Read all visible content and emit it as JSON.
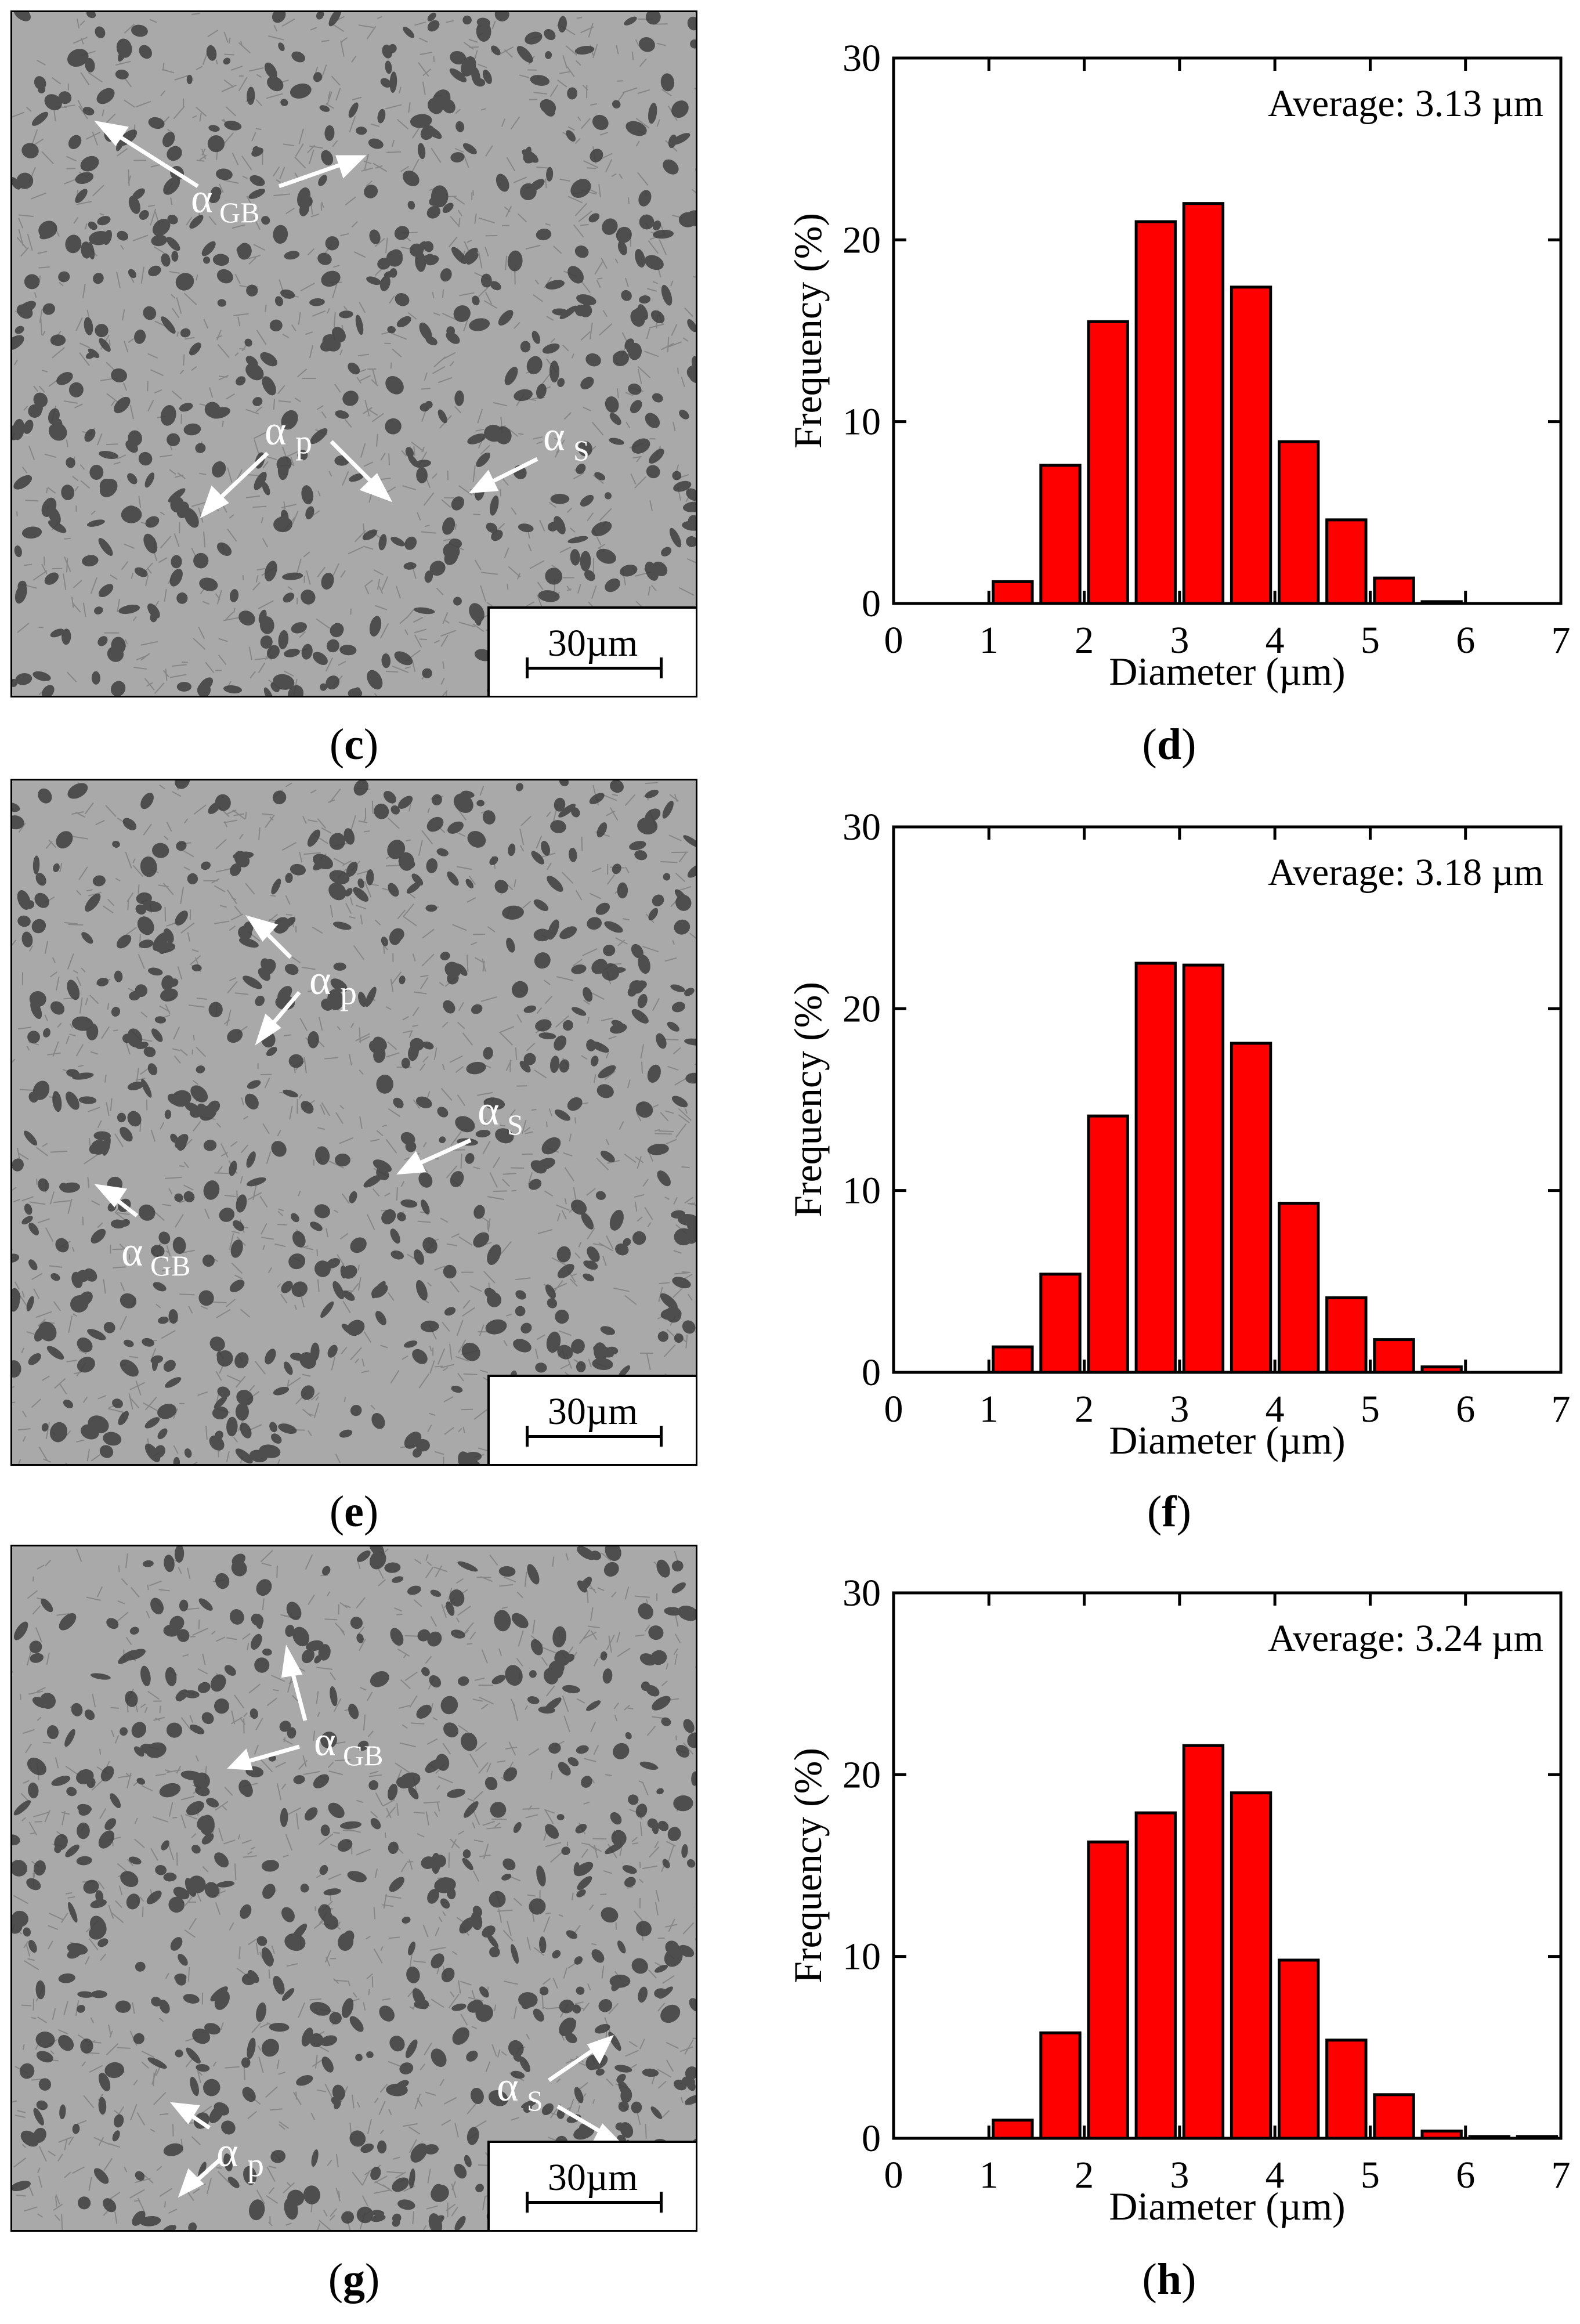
{
  "panels": [
    {
      "micro_label": "c",
      "micro_scale": "30µm",
      "annotations": [
        "α",
        "GB",
        "α",
        "p",
        "α",
        "S"
      ],
      "chart_label": "d"
    },
    {
      "micro_label": "e",
      "micro_scale": "30µm",
      "annotations": [
        "α",
        "p",
        "α",
        "S",
        "α",
        "GB"
      ],
      "chart_label": "f"
    },
    {
      "micro_label": "g",
      "micro_scale": "30µm",
      "annotations": [
        "α",
        "GB",
        "α",
        "S",
        "α",
        "p"
      ],
      "chart_label": "h"
    }
  ],
  "paren_open": "(",
  "paren_close": ")",
  "colors": {
    "bar": "#ff0000",
    "axis": "#000000",
    "micro_bg": "#a9a9a9"
  },
  "chart_data": [
    {
      "type": "bar",
      "panel": "d",
      "xlabel": "Diameter (µm)",
      "ylabel": "Frequency (%)",
      "annotation": "Average: 3.13 µm",
      "xlim": [
        0,
        7
      ],
      "ylim": [
        0,
        30
      ],
      "xticks": [
        0,
        1,
        2,
        3,
        4,
        5,
        6,
        7
      ],
      "yticks": [
        0,
        10,
        20,
        30
      ],
      "bin_width": 0.5,
      "bin_centers": [
        1.25,
        1.75,
        2.25,
        2.75,
        3.25,
        3.75,
        4.25,
        4.75,
        5.25,
        5.75,
        6.25,
        6.75
      ],
      "values": [
        1.2,
        7.6,
        15.5,
        21.0,
        22.0,
        17.4,
        8.9,
        4.6,
        1.4,
        0.1,
        0.0,
        0.0
      ]
    },
    {
      "type": "bar",
      "panel": "f",
      "xlabel": "Diameter (µm)",
      "ylabel": "Frequency (%)",
      "annotation": "Average: 3.18 µm",
      "xlim": [
        0,
        7
      ],
      "ylim": [
        0,
        30
      ],
      "xticks": [
        0,
        1,
        2,
        3,
        4,
        5,
        6,
        7
      ],
      "yticks": [
        0,
        10,
        20,
        30
      ],
      "bin_width": 0.5,
      "bin_centers": [
        1.25,
        1.75,
        2.25,
        2.75,
        3.25,
        3.75,
        4.25,
        4.75,
        5.25,
        5.75,
        6.25,
        6.75
      ],
      "values": [
        1.4,
        5.4,
        14.1,
        22.5,
        22.4,
        18.1,
        9.3,
        4.1,
        1.8,
        0.3,
        0.0,
        0.0
      ]
    },
    {
      "type": "bar",
      "panel": "h",
      "xlabel": "Diameter (µm)",
      "ylabel": "Frequency (%)",
      "annotation": "Average: 3.24 µm",
      "xlim": [
        0,
        7
      ],
      "ylim": [
        0,
        30
      ],
      "xticks": [
        0,
        1,
        2,
        3,
        4,
        5,
        6,
        7
      ],
      "yticks": [
        0,
        10,
        20,
        30
      ],
      "bin_width": 0.5,
      "bin_centers": [
        1.25,
        1.75,
        2.25,
        2.75,
        3.25,
        3.75,
        4.25,
        4.75,
        5.25,
        5.75,
        6.25,
        6.75
      ],
      "values": [
        1.0,
        5.8,
        16.3,
        17.9,
        21.6,
        19.0,
        9.8,
        5.4,
        2.4,
        0.4,
        0.1,
        0.1
      ]
    }
  ]
}
